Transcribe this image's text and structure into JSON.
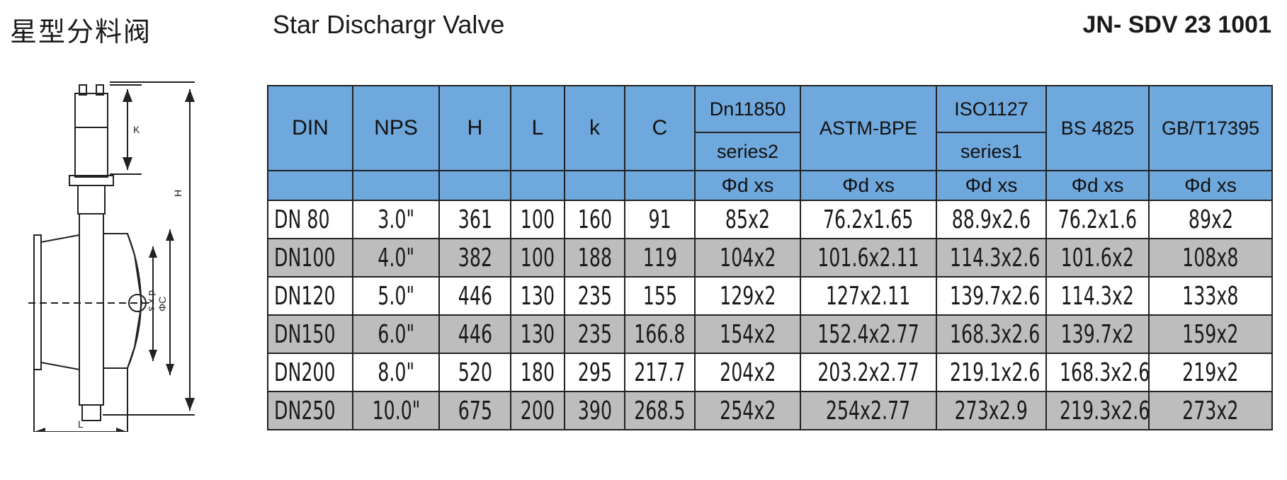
{
  "header": {
    "title_cn": "星型分料阀",
    "title_en": "Star Dischargr Valve",
    "code": "JN- SDV 23 1001"
  },
  "drawing": {
    "labels": {
      "k": "K",
      "h": "H",
      "dxs": "d x s",
      "c": "ΦC",
      "l": "L"
    }
  },
  "table": {
    "headers": {
      "din": "DIN",
      "nps": "NPS",
      "h": "H",
      "l": "L",
      "k": "k",
      "c": "C",
      "dn11850": "Dn11850",
      "dn11850_sub": "series2",
      "astm": "ASTM-BPE",
      "iso": "ISO1127",
      "iso_sub": "series1",
      "bs": "BS 4825",
      "gb": "GB/T17395"
    },
    "subheader": [
      "Φd xs",
      "Φd xs",
      "Φd xs",
      "Φd xs",
      "Φd xs"
    ],
    "rows": [
      [
        "DN 80",
        "3.0\"",
        "361",
        "100",
        "160",
        "91",
        "85x2",
        "76.2x1.65",
        "88.9x2.6",
        "76.2x1.6",
        "89x2"
      ],
      [
        "DN100",
        "4.0\"",
        "382",
        "100",
        "188",
        "119",
        "104x2",
        "101.6x2.11",
        "114.3x2.6",
        "101.6x2",
        "108x8"
      ],
      [
        "DN120",
        "5.0\"",
        "446",
        "130",
        "235",
        "155",
        "129x2",
        "127x2.11",
        "139.7x2.6",
        "114.3x2",
        "133x8"
      ],
      [
        "DN150",
        "6.0\"",
        "446",
        "130",
        "235",
        "166.8",
        "154x2",
        "152.4x2.77",
        "168.3x2.6",
        "139.7x2",
        "159x2"
      ],
      [
        "DN200",
        "8.0\"",
        "520",
        "180",
        "295",
        "217.7",
        "204x2",
        "203.2x2.77",
        "219.1x2.6",
        "168.3x2.6",
        "219x2"
      ],
      [
        "DN250",
        "10.0\"",
        "675",
        "200",
        "390",
        "268.5",
        "254x2",
        "254x2.77",
        "273x2.9",
        "219.3x2.6",
        "273x2"
      ]
    ]
  },
  "colors": {
    "header_bg": "#6fa8dc",
    "alt_row_bg": "#bdbdbd"
  }
}
